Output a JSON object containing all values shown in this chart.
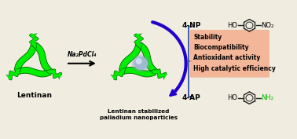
{
  "bg_color": "#f0ece0",
  "arrow_label": "Na₂PdCl₄",
  "lentinan_label": "Lentinan",
  "np_label": "Lentinan stabilized\npalladium nanoparticles",
  "label_4NP": "4-NP",
  "label_4AP": "4-AP",
  "properties": [
    "Stability",
    "Biocompatibility",
    "Antioxidant activity",
    "High catalytic efficiency"
  ],
  "box_color_top": "#f5b090",
  "box_color_bot": "#f09060",
  "green_color": "#00ee00",
  "dark_green": "#006600",
  "black": "#000000",
  "arrow_color": "#2200cc",
  "bracket_color": "#3355aa",
  "nh2_color": "#00bb00",
  "mol_color": "#222222",
  "sphere_color": "#a0b8d0",
  "sphere_hi": "#d8e8f8",
  "sphere_shadow": "#607080"
}
